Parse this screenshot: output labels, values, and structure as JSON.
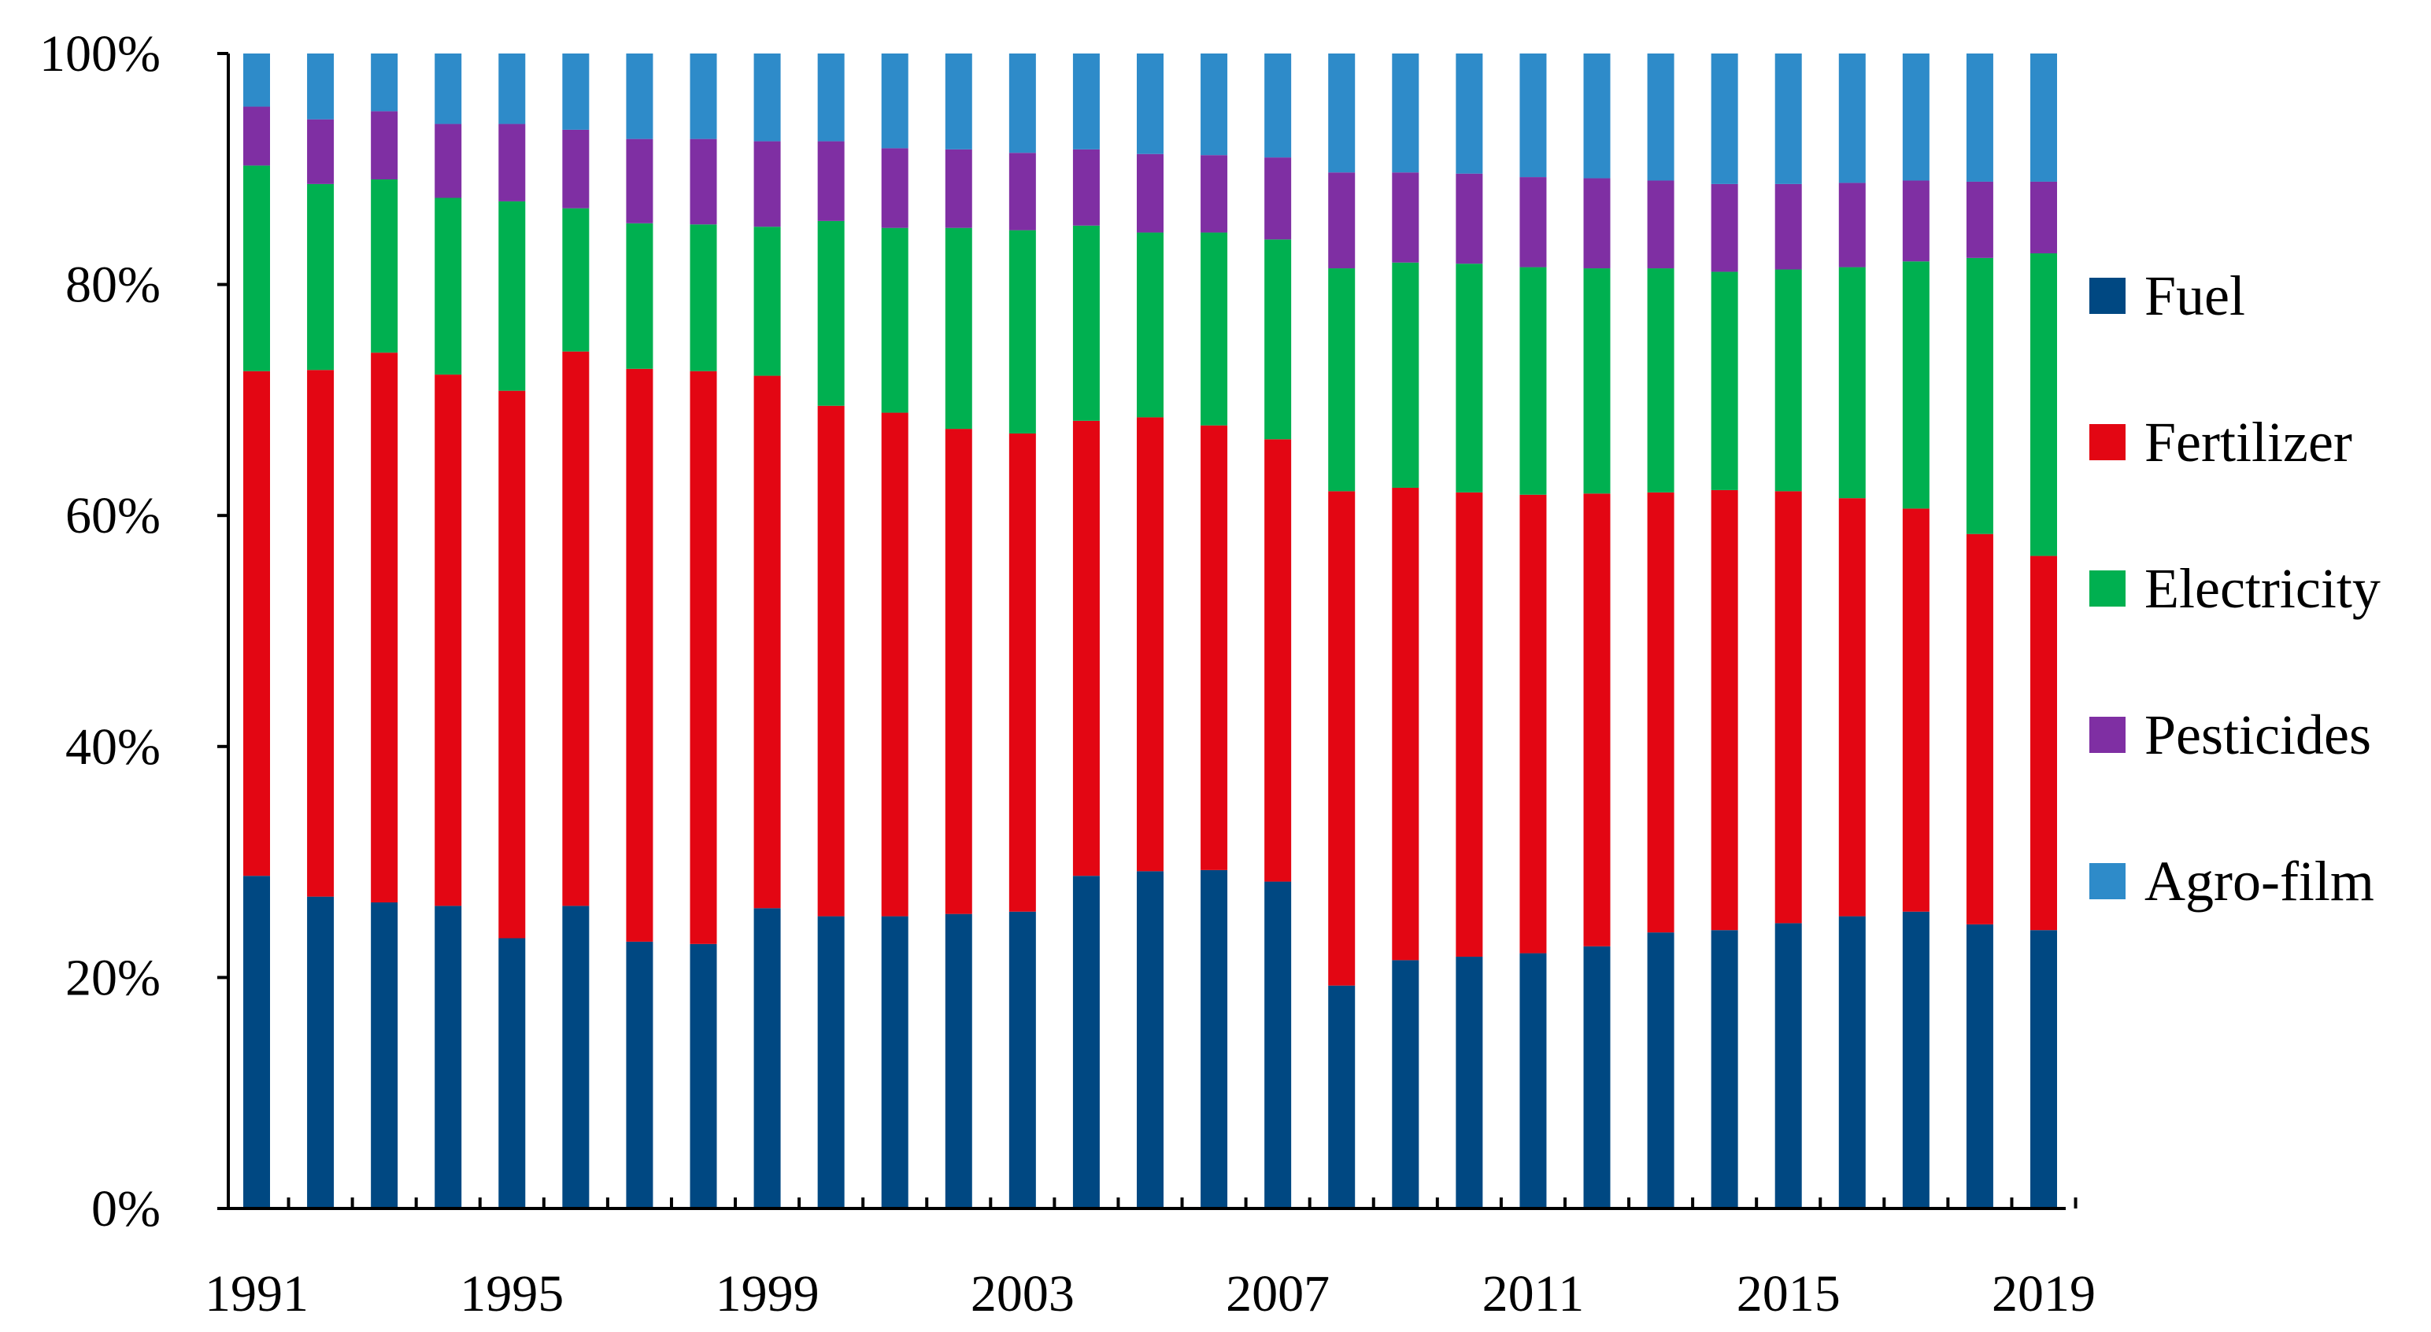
{
  "chart_data": {
    "type": "bar",
    "stacked": true,
    "percent_stacked": true,
    "title": "",
    "xlabel": "",
    "ylabel": "",
    "ylim": [
      0,
      100
    ],
    "y_ticks": [
      "0%",
      "20%",
      "40%",
      "60%",
      "80%",
      "100%"
    ],
    "x_tick_labels": [
      "1991",
      "1995",
      "1999",
      "2003",
      "2007",
      "2011",
      "2015",
      "2019"
    ],
    "grid": false,
    "legend_position": "right",
    "categories": [
      "1991",
      "1992",
      "1993",
      "1994",
      "1995",
      "1996",
      "1997",
      "1998",
      "1999",
      "2000",
      "2001",
      "2002",
      "2003",
      "2004",
      "2005",
      "2006",
      "2007",
      "2008",
      "2009",
      "2010",
      "2011",
      "2012",
      "2013",
      "2014",
      "2015",
      "2016",
      "2017",
      "2018",
      "2019"
    ],
    "series": [
      {
        "name": "Fuel",
        "color": "#004882",
        "values": [
          28.8,
          27.0,
          26.5,
          26.2,
          23.4,
          26.2,
          23.1,
          22.9,
          26.0,
          25.3,
          25.3,
          25.5,
          25.7,
          28.8,
          29.2,
          29.3,
          28.3,
          19.3,
          21.5,
          21.8,
          22.1,
          22.7,
          23.9,
          24.1,
          24.7,
          25.3,
          25.7,
          24.6,
          24.1
        ]
      },
      {
        "name": "Fertilizer",
        "color": "#E30613",
        "values": [
          43.7,
          45.6,
          47.6,
          46.0,
          47.4,
          48.0,
          49.6,
          49.6,
          46.1,
          44.2,
          43.6,
          42.0,
          41.4,
          39.4,
          39.3,
          38.5,
          38.3,
          42.8,
          40.9,
          40.2,
          39.7,
          39.2,
          38.1,
          38.1,
          37.4,
          36.2,
          34.9,
          33.8,
          32.4
        ]
      },
      {
        "name": "Electricity",
        "color": "#00B050",
        "values": [
          17.8,
          16.1,
          15.0,
          15.3,
          16.4,
          12.4,
          12.6,
          12.7,
          12.9,
          16.0,
          16.0,
          17.4,
          17.6,
          16.9,
          16.0,
          16.7,
          17.3,
          19.3,
          19.5,
          19.8,
          19.7,
          19.5,
          19.4,
          18.9,
          19.2,
          20.0,
          21.4,
          23.9,
          26.2
        ]
      },
      {
        "name": "Pesticides",
        "color": "#7F2FA3",
        "values": [
          5.1,
          5.6,
          5.9,
          6.4,
          6.7,
          6.8,
          7.3,
          7.4,
          7.4,
          6.9,
          6.9,
          6.8,
          6.7,
          6.6,
          6.8,
          6.7,
          7.1,
          8.3,
          7.8,
          7.8,
          7.8,
          7.8,
          7.6,
          7.6,
          7.4,
          7.3,
          7.0,
          6.6,
          6.2
        ]
      },
      {
        "name": "Agro-film",
        "color": "#2E8BC9",
        "values": [
          4.6,
          5.7,
          5.0,
          6.1,
          6.1,
          6.6,
          7.4,
          7.4,
          7.6,
          7.6,
          8.2,
          8.3,
          8.6,
          8.3,
          8.7,
          8.8,
          9.0,
          10.3,
          10.3,
          10.4,
          10.7,
          10.8,
          11.0,
          11.3,
          11.3,
          11.2,
          11.0,
          11.1,
          11.1
        ]
      }
    ]
  }
}
